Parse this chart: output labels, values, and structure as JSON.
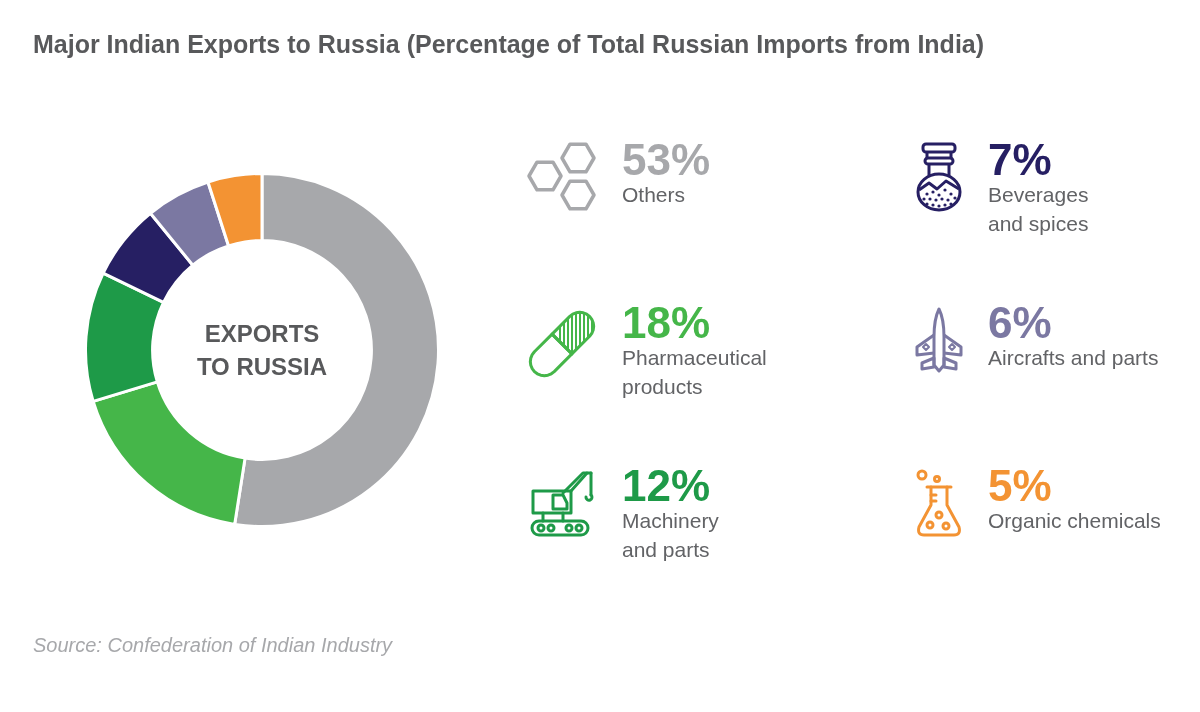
{
  "chart_data": {
    "type": "donut",
    "title": "Major Indian Exports to Russia (Percentage of Total Russian Imports from India)",
    "categories": [
      "Others",
      "Pharmaceutical products",
      "Machinery and parts",
      "Beverages and spices",
      "Aircrafts and parts",
      "Organic chemicals"
    ],
    "values": [
      53,
      18,
      12,
      7,
      6,
      5
    ],
    "colors": [
      "#a7a8ab",
      "#45b649",
      "#1e9a48",
      "#261f63",
      "#7b78a2",
      "#f39333"
    ],
    "value_labels": [
      "53%",
      "18%",
      "12%",
      "7%",
      "6%",
      "5%"
    ],
    "legend": "right",
    "annotations": [
      "EXPORTS TO RUSSIA",
      "Source: Confederation of Indian Industry"
    ]
  }
}
